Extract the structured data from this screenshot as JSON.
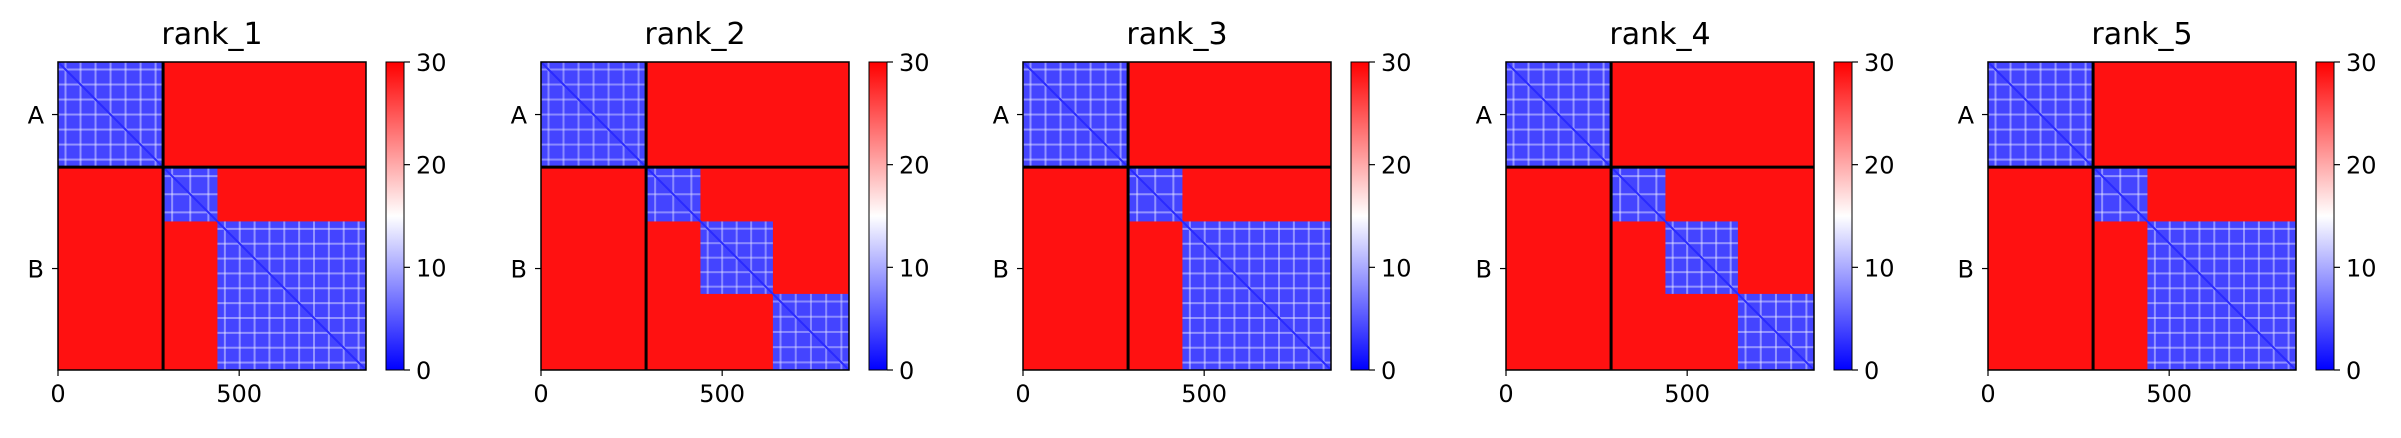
{
  "chart_data": [
    {
      "type": "heatmap",
      "title": "rank_1",
      "x_ticks": [
        0,
        500
      ],
      "y_ticks": [
        "A",
        "B"
      ],
      "chain_boundary": 290,
      "total_length": 850,
      "colorbar_ticks": [
        0,
        10,
        20,
        30
      ],
      "colorscale": {
        "min": 0,
        "max": 30,
        "low": "#0000ff",
        "mid": "#ffffff",
        "high": "#ff0000"
      },
      "blocks": [
        290,
        150,
        410
      ],
      "off_diagonal_value": 29,
      "intra_block_value": 26,
      "within_domain_value": 4
    },
    {
      "type": "heatmap",
      "title": "rank_2",
      "x_ticks": [
        0,
        500
      ],
      "y_ticks": [
        "A",
        "B"
      ],
      "chain_boundary": 290,
      "total_length": 850,
      "colorbar_ticks": [
        0,
        10,
        20,
        30
      ],
      "colorscale": {
        "min": 0,
        "max": 30,
        "low": "#0000ff",
        "mid": "#ffffff",
        "high": "#ff0000"
      },
      "blocks": [
        290,
        150,
        200,
        210
      ],
      "off_diagonal_value": 29,
      "intra_block_value": 24,
      "within_domain_value": 4
    },
    {
      "type": "heatmap",
      "title": "rank_3",
      "x_ticks": [
        0,
        500
      ],
      "y_ticks": [
        "A",
        "B"
      ],
      "chain_boundary": 290,
      "total_length": 850,
      "colorbar_ticks": [
        0,
        10,
        20,
        30
      ],
      "colorscale": {
        "min": 0,
        "max": 30,
        "low": "#0000ff",
        "mid": "#ffffff",
        "high": "#ff0000"
      },
      "blocks": [
        290,
        150,
        410
      ],
      "off_diagonal_value": 29,
      "intra_block_value": 26,
      "within_domain_value": 4
    },
    {
      "type": "heatmap",
      "title": "rank_4",
      "x_ticks": [
        0,
        500
      ],
      "y_ticks": [
        "A",
        "B"
      ],
      "chain_boundary": 290,
      "total_length": 850,
      "colorbar_ticks": [
        0,
        10,
        20,
        30
      ],
      "colorscale": {
        "min": 0,
        "max": 30,
        "low": "#0000ff",
        "mid": "#ffffff",
        "high": "#ff0000"
      },
      "blocks": [
        290,
        150,
        200,
        210
      ],
      "off_diagonal_value": 29,
      "intra_block_value": 26,
      "within_domain_value": 4
    },
    {
      "type": "heatmap",
      "title": "rank_5",
      "x_ticks": [
        0,
        500
      ],
      "y_ticks": [
        "A",
        "B"
      ],
      "chain_boundary": 290,
      "total_length": 850,
      "colorbar_ticks": [
        0,
        10,
        20,
        30
      ],
      "colorscale": {
        "min": 0,
        "max": 30,
        "low": "#0000ff",
        "mid": "#ffffff",
        "high": "#ff0000"
      },
      "blocks": [
        290,
        150,
        410
      ],
      "off_diagonal_value": 29,
      "intra_block_value": 26,
      "within_domain_value": 4
    }
  ]
}
